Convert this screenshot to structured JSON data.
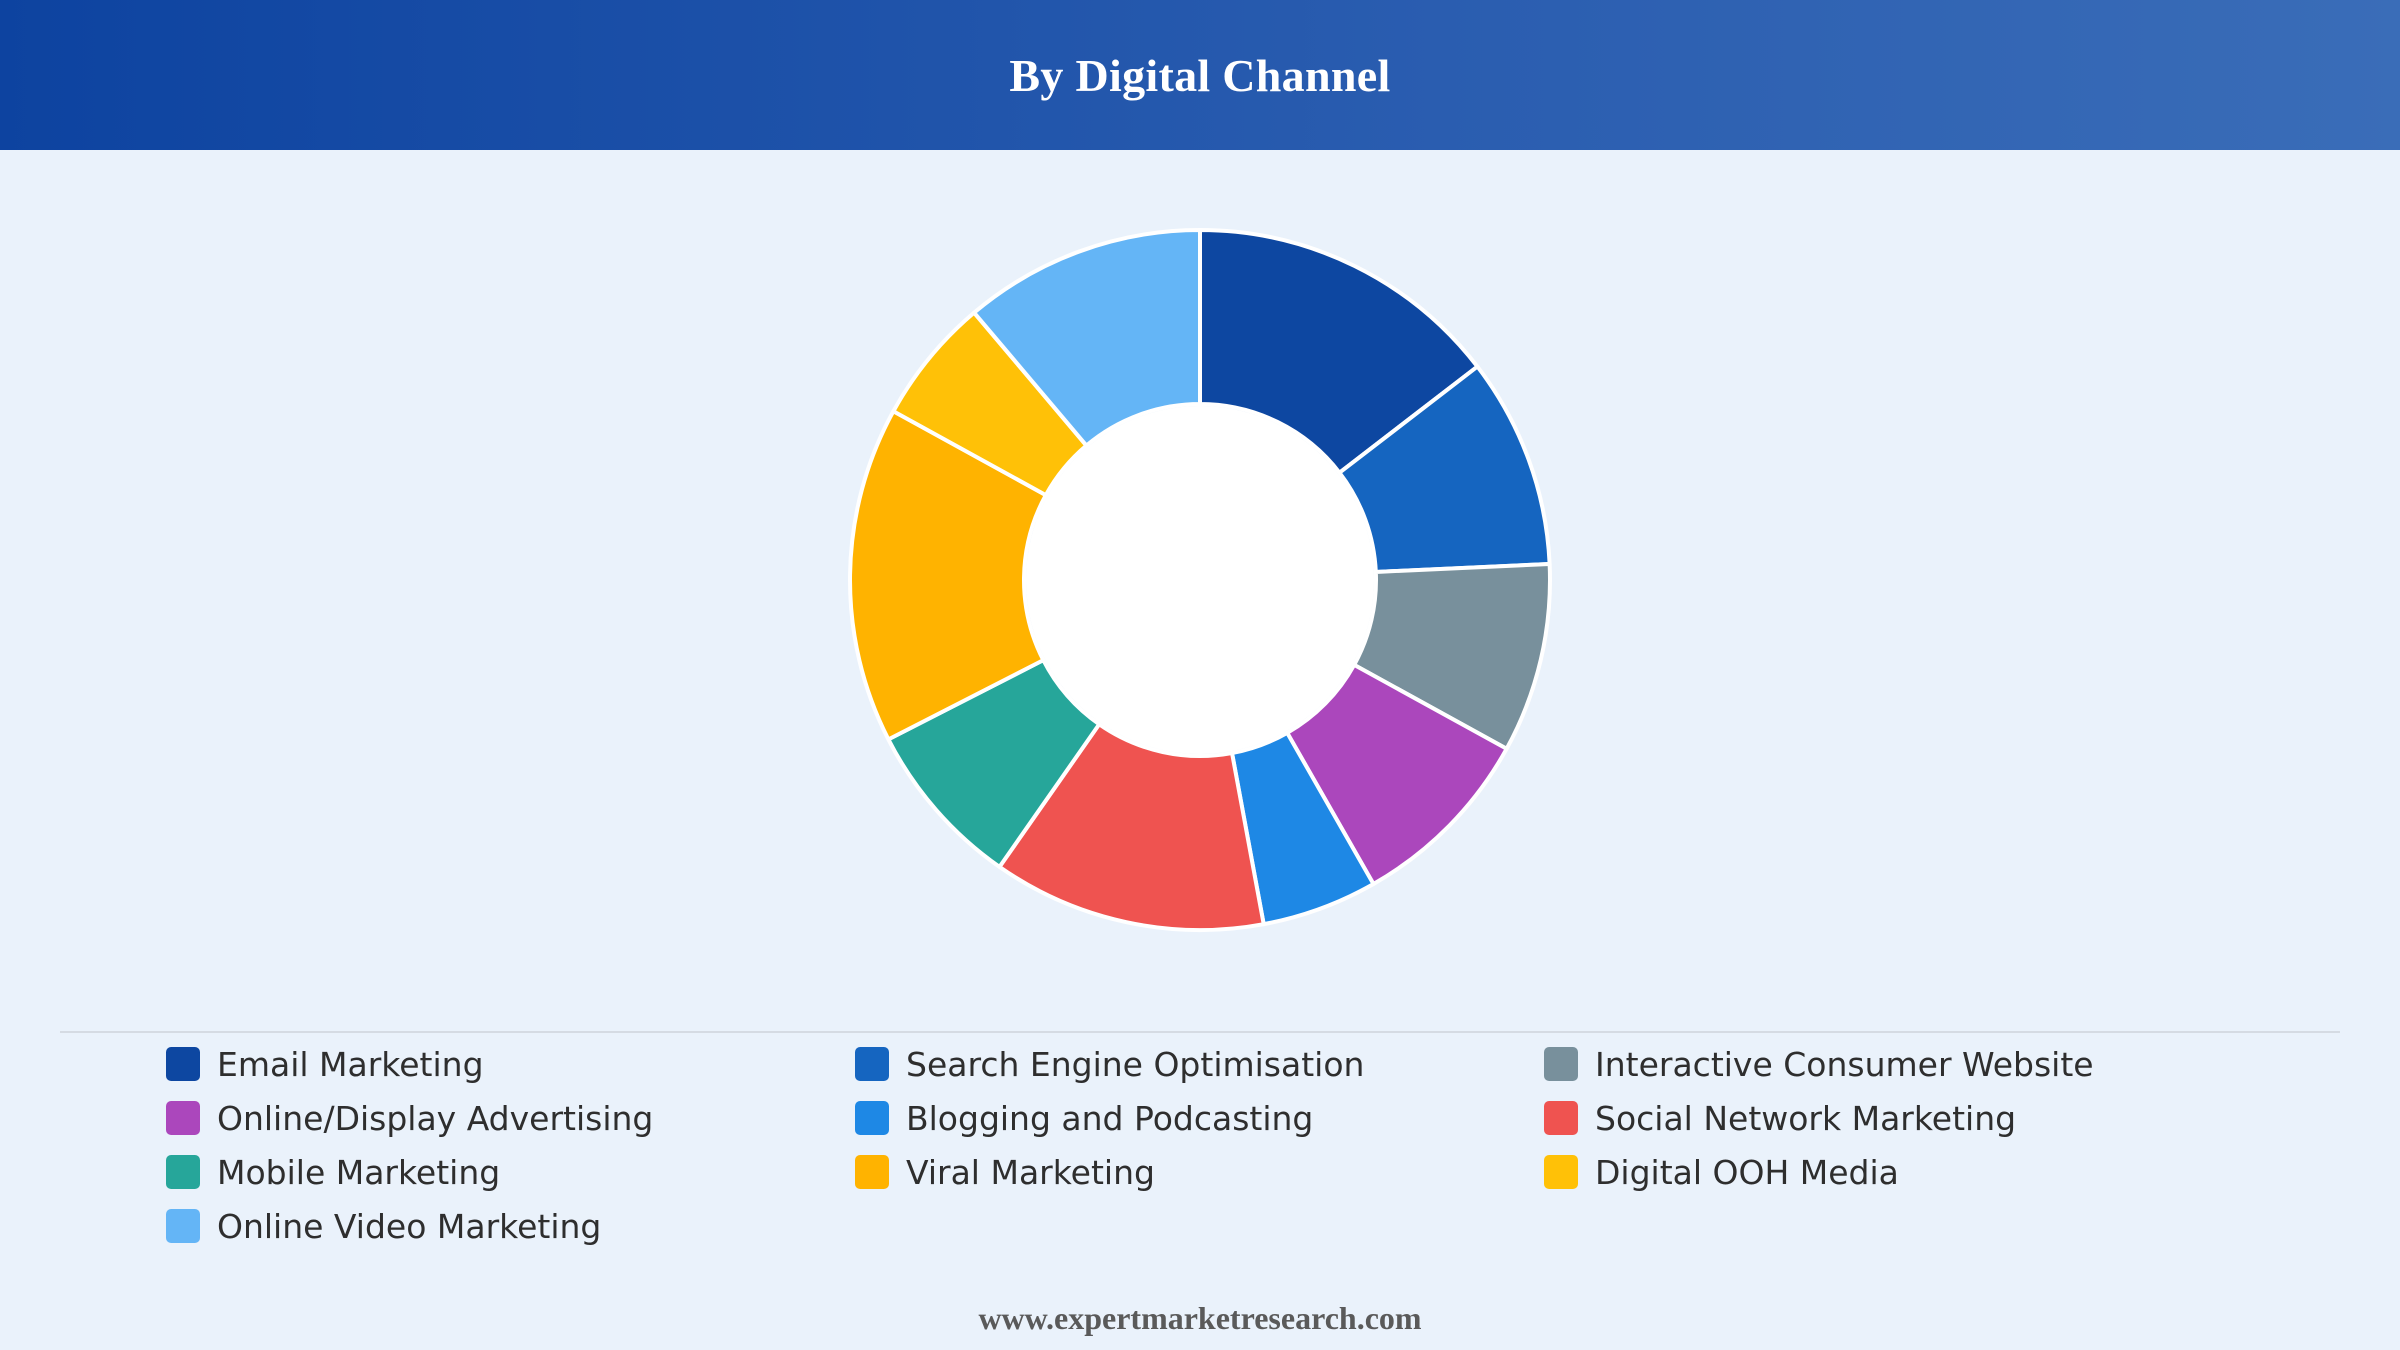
{
  "header": {
    "title": "By Digital Channel"
  },
  "footer": {
    "url": "www.expertmarketresearch.com"
  },
  "chart_data": {
    "type": "pie",
    "variant": "donut",
    "title": "By Digital Channel",
    "legend_position": "bottom",
    "categories": [
      "Email Marketing",
      "Search Engine Optimisation",
      "Interactive Consumer Website",
      "Online/Display Advertising",
      "Blogging and Podcasting",
      "Social Network Marketing",
      "Mobile Marketing",
      "Viral Marketing",
      "Digital OOH Media",
      "Online Video Marketing"
    ],
    "values": [
      15,
      10,
      9,
      9,
      5.5,
      13,
      8,
      16,
      6,
      11.5
    ],
    "colors": [
      "#0d47a1",
      "#1565c0",
      "#78909c",
      "#ab47bc",
      "#1e88e5",
      "#ef5350",
      "#26a69a",
      "#ffb300",
      "#ffc107",
      "#64b5f6"
    ]
  }
}
